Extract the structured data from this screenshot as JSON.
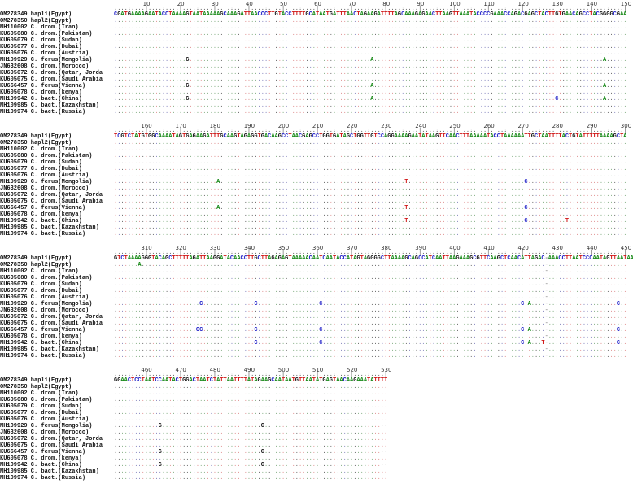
{
  "sequence_names": [
    "OM278349 hapl1(Egypt)",
    "OM278350 hapl2(Egypt)",
    "MH110002 C. drom.(Iran)",
    "KU605080 C. drom.(Pakistan)",
    "KU605079 C. drom.(Sudan)",
    "KU605077 C. drom.(Dubai)",
    "KU605076 C. drom.(Austria)",
    "MH109929 C. ferus(Mongolia)",
    "JN632608 C. drom.(Morocco)",
    "KU605072 C. drom.(Qatar, Jorda",
    "KU605075 C. drom.(Saudi Arabia",
    "KU666457 C. ferus(Vienna)",
    "KU605078 C. drom.(kenya)",
    "MH109942 C. bact.(China)",
    "MH109985 C. bact.(Kazakhstan)",
    "MH109974 C. bact.(Russia)"
  ],
  "base_colors": {
    "A": "#1a8a1a",
    "C": "#2020c8",
    "G": "#111111",
    "T": "#d01818"
  },
  "blocks": [
    {
      "start": 1,
      "end": 150,
      "consensus": "CGATGAAAAGAATACCTAAAAGTAATAAAAAGCAAAGATTAACCCTTGTACCTTTTGCATAATGATTTAACTAGAAGATTTTAGCAAAGAGAACTTAAGTTAAATACCCCGAAACCAGACGAGCTACTTGTGAACAGCCTACGGGGCGAA"
    },
    {
      "start": 151,
      "end": 300,
      "consensus": "TCGTCTATGTGGCAAAATAGTGAGAAGATTTGCAAGTAGAGGTGACAAGCCTAACGAGCCTGGTGATAGCTGGTTGTCCAGGAAAAGAATATAAGTTCAACTTTAAAAATACCTAAAAAATTGCTAATTTTACTGTATTTTTAAAAGCTA"
    },
    {
      "start": 301,
      "end": 450,
      "consensus": "GTCTAAAAGGGTACAGCTTTTTAGATTAAGGATACAACCTTGCTTAGAGAGTAAAAACAATCAATACCATAGTAGGGGCTTAAAAGCAGCCATCAATTAAGAAAGCGTTCAAGCTCAACATTAGAC-AAACCTTAATCCCAATAGTTAATAA"
    },
    {
      "start": 451,
      "end": 530,
      "consensus": "GGAACTCCTAATCCAATACTGGACTAATCTATTAATTTTATAGAAGCAATAATGTTAATATGAGTAACAAGAAATATTTT"
    }
  ],
  "variants": [
    {
      "row": 7,
      "pos": 22,
      "base": "G"
    },
    {
      "row": 11,
      "pos": 22,
      "base": "G"
    },
    {
      "row": 13,
      "pos": 22,
      "base": "G"
    },
    {
      "row": 7,
      "pos": 76,
      "base": "A"
    },
    {
      "row": 11,
      "pos": 76,
      "base": "A"
    },
    {
      "row": 13,
      "pos": 76,
      "base": "A"
    },
    {
      "row": 13,
      "pos": 130,
      "base": "C"
    },
    {
      "row": 7,
      "pos": 144,
      "base": "A"
    },
    {
      "row": 11,
      "pos": 144,
      "base": "A"
    },
    {
      "row": 13,
      "pos": 144,
      "base": "A"
    },
    {
      "row": 7,
      "pos": 181,
      "base": "A"
    },
    {
      "row": 11,
      "pos": 181,
      "base": "A"
    },
    {
      "row": 7,
      "pos": 236,
      "base": "T"
    },
    {
      "row": 11,
      "pos": 236,
      "base": "T"
    },
    {
      "row": 13,
      "pos": 236,
      "base": "T"
    },
    {
      "row": 7,
      "pos": 271,
      "base": "C"
    },
    {
      "row": 11,
      "pos": 271,
      "base": "C"
    },
    {
      "row": 13,
      "pos": 271,
      "base": "C"
    },
    {
      "row": 13,
      "pos": 283,
      "base": "T"
    },
    {
      "row": 1,
      "pos": 308,
      "base": "A"
    },
    {
      "row": 7,
      "pos": 326,
      "base": "C"
    },
    {
      "row": 11,
      "pos": 325,
      "base": "C"
    },
    {
      "row": 11,
      "pos": 326,
      "base": "C"
    },
    {
      "row": 7,
      "pos": 342,
      "base": "C"
    },
    {
      "row": 11,
      "pos": 342,
      "base": "C"
    },
    {
      "row": 13,
      "pos": 342,
      "base": "C"
    },
    {
      "row": 7,
      "pos": 361,
      "base": "C"
    },
    {
      "row": 11,
      "pos": 361,
      "base": "C"
    },
    {
      "row": 13,
      "pos": 361,
      "base": "C"
    },
    {
      "row": 7,
      "pos": 420,
      "base": "C"
    },
    {
      "row": 11,
      "pos": 420,
      "base": "C"
    },
    {
      "row": 13,
      "pos": 420,
      "base": "C"
    },
    {
      "row": 7,
      "pos": 422,
      "base": "A"
    },
    {
      "row": 11,
      "pos": 422,
      "base": "A"
    },
    {
      "row": 13,
      "pos": 422,
      "base": "A"
    },
    {
      "row": 13,
      "pos": 426,
      "base": "T"
    },
    {
      "row": 7,
      "pos": 448,
      "base": "C"
    },
    {
      "row": 11,
      "pos": 448,
      "base": "C"
    },
    {
      "row": 13,
      "pos": 448,
      "base": "C"
    },
    {
      "row": 7,
      "pos": 464,
      "base": "G"
    },
    {
      "row": 11,
      "pos": 464,
      "base": "G"
    },
    {
      "row": 13,
      "pos": 464,
      "base": "G"
    },
    {
      "row": 7,
      "pos": 494,
      "base": "G"
    },
    {
      "row": 11,
      "pos": 494,
      "base": "G"
    },
    {
      "row": 13,
      "pos": 494,
      "base": "G"
    },
    {
      "row": 7,
      "pos": 529,
      "base": "-"
    },
    {
      "row": 7,
      "pos": 530,
      "base": "-"
    },
    {
      "row": 11,
      "pos": 529,
      "base": "-"
    },
    {
      "row": 11,
      "pos": 530,
      "base": "-"
    },
    {
      "row": 13,
      "pos": 529,
      "base": "-"
    },
    {
      "row": 13,
      "pos": 530,
      "base": "-"
    }
  ]
}
